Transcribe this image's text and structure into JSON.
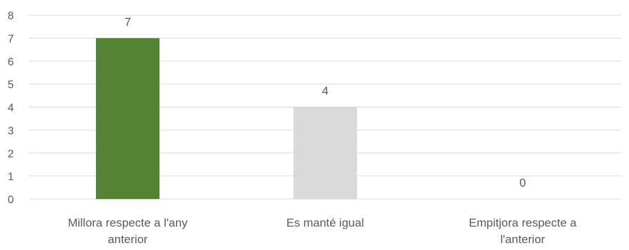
{
  "chart_data": {
    "type": "bar",
    "title": "",
    "xlabel": "",
    "ylabel": "",
    "ylim": [
      0,
      8
    ],
    "yticks": [
      0,
      1,
      2,
      3,
      4,
      5,
      6,
      7,
      8
    ],
    "grid": true,
    "legend": "none",
    "categories": [
      [
        "Millora respecte a l'any",
        "anterior"
      ],
      [
        "Es manté igual"
      ],
      [
        "Empitjora respecte a",
        "l'anterior"
      ]
    ],
    "values": [
      7,
      4,
      0
    ],
    "data_labels": [
      "7",
      "4",
      "0"
    ],
    "colors": [
      "#548235",
      "#D9D9D9",
      "#A5A5A5"
    ],
    "gridline_color": "#D9D9D9",
    "text_color": "#595959"
  }
}
